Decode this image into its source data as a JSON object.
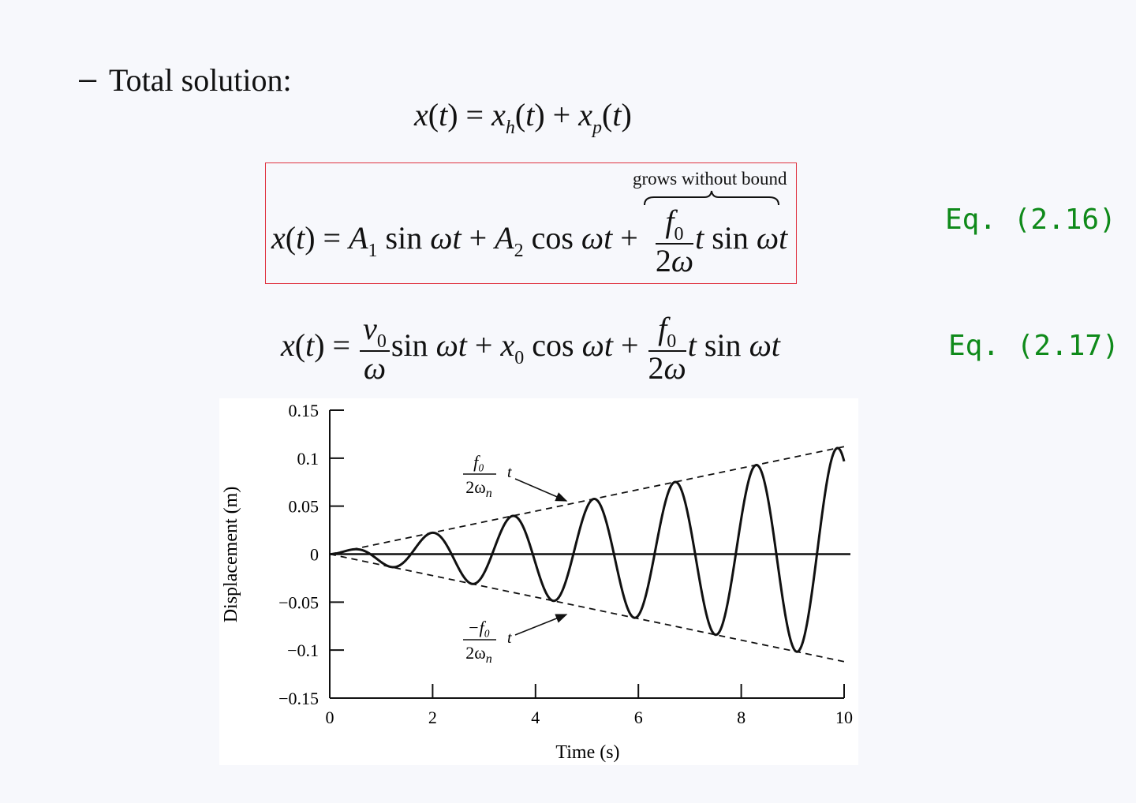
{
  "bullet": {
    "dash": "–",
    "text": "Total solution:"
  },
  "eq_total": {
    "lhs": "x(t) = x",
    "h": "h",
    "mid": "(t) + x",
    "p": "p",
    "end": "(t)"
  },
  "eq216": {
    "annotation": "grows without bound",
    "label": "Eq. (2.16)"
  },
  "eq217": {
    "label": "Eq. (2.17)"
  },
  "colors": {
    "box_border": "#e0313f",
    "eq_label": "#0f8a1a"
  },
  "chart_data": {
    "type": "line",
    "xlabel": "Time (s)",
    "ylabel": "Displacement (m)",
    "xlim": [
      0,
      10
    ],
    "ylim": [
      -0.15,
      0.15
    ],
    "xticks": [
      "0",
      "2",
      "4",
      "6",
      "8",
      "10"
    ],
    "yticks": [
      "0.15",
      "0.1",
      "0.05",
      "0",
      "−0.05",
      "−0.1",
      "−0.15"
    ],
    "ytick_values": [
      0.15,
      0.1,
      0.05,
      0,
      -0.05,
      -0.1,
      -0.15
    ],
    "xtick_values": [
      0,
      2,
      4,
      6,
      8,
      10
    ],
    "response": {
      "envelope_slope": 0.0112,
      "omega": 3.98
    },
    "annotations": {
      "upper": {
        "num": "f₀",
        "den": "2ω",
        "den_sub": "n",
        "t": "t"
      },
      "lower": {
        "num": "−f₀",
        "den": "2ω",
        "den_sub": "n",
        "t": "t"
      }
    },
    "grid": false
  }
}
